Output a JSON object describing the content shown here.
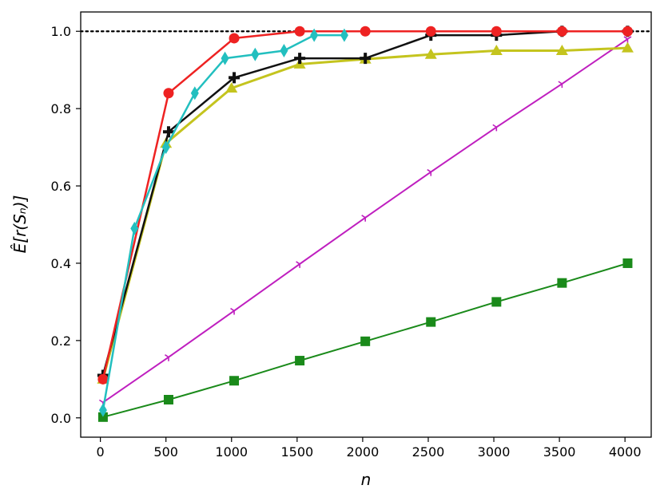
{
  "chart_data": {
    "type": "line",
    "title": "",
    "xlabel": "n",
    "ylabel": "Ê[r(Sₙ)]",
    "xlim": [
      -150,
      4200
    ],
    "ylim": [
      -0.05,
      1.05
    ],
    "xticks": [
      0,
      500,
      1000,
      1500,
      2000,
      2500,
      3000,
      3500,
      4000
    ],
    "xtick_labels": [
      "0",
      "500",
      "1000",
      "1500",
      "2000",
      "2500",
      "3000",
      "3500",
      "4000"
    ],
    "yticks": [
      0.0,
      0.2,
      0.4,
      0.6,
      0.8,
      1.0
    ],
    "ytick_labels": [
      "0.0",
      "0.2",
      "0.4",
      "0.6",
      "0.8",
      "1.0"
    ],
    "grid": false,
    "legend": "none",
    "reference_line": {
      "y": 1.0,
      "style": "dotted",
      "color": "#000000"
    },
    "series": [
      {
        "color": "#1a8a1a",
        "marker": "square",
        "width": 2,
        "x": [
          20,
          520,
          1020,
          1520,
          2020,
          2520,
          3020,
          3520,
          4020
        ],
        "y": [
          0.002,
          0.047,
          0.096,
          0.148,
          0.198,
          0.248,
          0.3,
          0.349,
          0.4
        ]
      },
      {
        "color": "#bf1fbf",
        "marker": "tri_down",
        "width": 2,
        "x": [
          20,
          520,
          1020,
          1520,
          2020,
          2520,
          3020,
          3520,
          4020
        ],
        "y": [
          0.04,
          0.157,
          0.277,
          0.398,
          0.518,
          0.636,
          0.752,
          0.864,
          0.98
        ]
      },
      {
        "color": "#f0a020",
        "marker": "circle",
        "width": 2,
        "x": [
          20
        ],
        "y": [
          0.1
        ]
      },
      {
        "color": "#c4c41e",
        "marker": "triangle",
        "width": 3,
        "x": [
          20,
          500,
          1000,
          1520,
          2020,
          2520,
          3020,
          3520,
          4020
        ],
        "y": [
          0.1,
          0.71,
          0.853,
          0.915,
          0.928,
          0.94,
          0.95,
          0.95,
          0.957
        ]
      },
      {
        "color": "#111111",
        "marker": "plus",
        "width": 2.5,
        "x": [
          20,
          520,
          1020,
          1520,
          2020,
          2520,
          3020,
          3520,
          4020
        ],
        "y": [
          0.11,
          0.74,
          0.88,
          0.93,
          0.93,
          0.99,
          0.99,
          1.0,
          1.0
        ]
      },
      {
        "color": "#ee2222",
        "marker": "circle",
        "width": 2.5,
        "x": [
          20,
          520,
          1020,
          1520,
          2020,
          2520,
          3020,
          3520,
          4020
        ],
        "y": [
          0.1,
          0.84,
          0.982,
          1.0,
          1.0,
          1.0,
          1.0,
          1.0,
          1.0
        ]
      },
      {
        "color": "#22bfbf",
        "marker": "diamond",
        "width": 2.5,
        "x": [
          20,
          260,
          500,
          720,
          950,
          1180,
          1400,
          1630,
          1860
        ],
        "y": [
          0.02,
          0.49,
          0.7,
          0.84,
          0.93,
          0.94,
          0.95,
          0.99,
          0.99
        ]
      }
    ]
  }
}
